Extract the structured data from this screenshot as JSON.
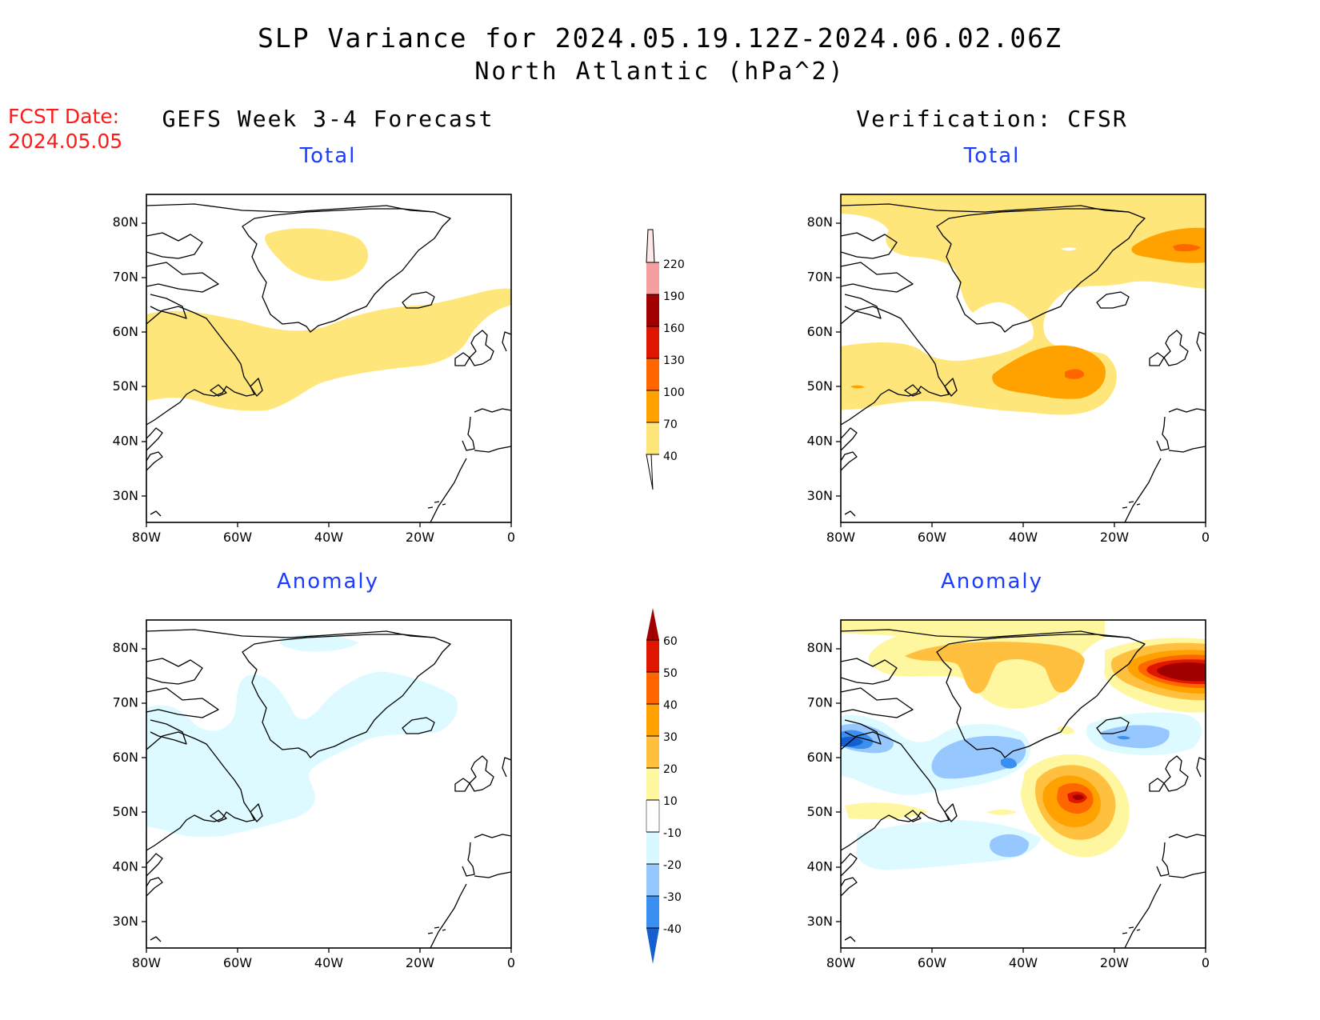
{
  "header": {
    "title": "SLP Variance for 2024.05.19.12Z-2024.06.02.06Z",
    "subtitle": "North Atlantic (hPa^2)",
    "fcst_label": "FCST Date:",
    "fcst_date": "2024.05.05"
  },
  "columns": {
    "left_title": "GEFS Week 3-4 Forecast",
    "right_title": "Verification: CFSR"
  },
  "panels": {
    "total_label": "Total",
    "anomaly_label": "Anomaly"
  },
  "axes": {
    "lat_ticks": [
      "80N",
      "70N",
      "60N",
      "50N",
      "40N",
      "30N"
    ],
    "lon_ticks": [
      "80W",
      "60W",
      "40W",
      "20W",
      "0"
    ],
    "lat_range": [
      25,
      85
    ],
    "lon_range": [
      -80,
      0
    ]
  },
  "colorbars": {
    "total": {
      "labels": [
        "220",
        "190",
        "160",
        "130",
        "100",
        "70",
        "40"
      ],
      "colors": [
        "#fde7e7",
        "#f4a0a0",
        "#a00000",
        "#e01600",
        "#ff6600",
        "#ffa200",
        "#ffe67a"
      ]
    },
    "anomaly": {
      "labels": [
        "60",
        "50",
        "40",
        "30",
        "20",
        "10",
        "-10",
        "-20",
        "-30",
        "-40"
      ],
      "colors": [
        "#a00000",
        "#e01600",
        "#ff6600",
        "#ffa200",
        "#ffc040",
        "#fff6a0",
        "#ffffff",
        "#d8f8ff",
        "#96c8ff",
        "#3a8ff0",
        "#1460d0"
      ]
    }
  },
  "map_colors": {
    "yellow": "#ffe67a",
    "orange_light": "#ffb83a",
    "orange": "#ffa200",
    "red_orange": "#ff6600",
    "red": "#e01600",
    "dark_red": "#a00000",
    "pale_yellow": "#fff6a0",
    "light_cyan": "#dcfaff",
    "light_blue": "#96c8ff",
    "blue": "#3a8ff0",
    "deep_blue": "#1460d0"
  }
}
